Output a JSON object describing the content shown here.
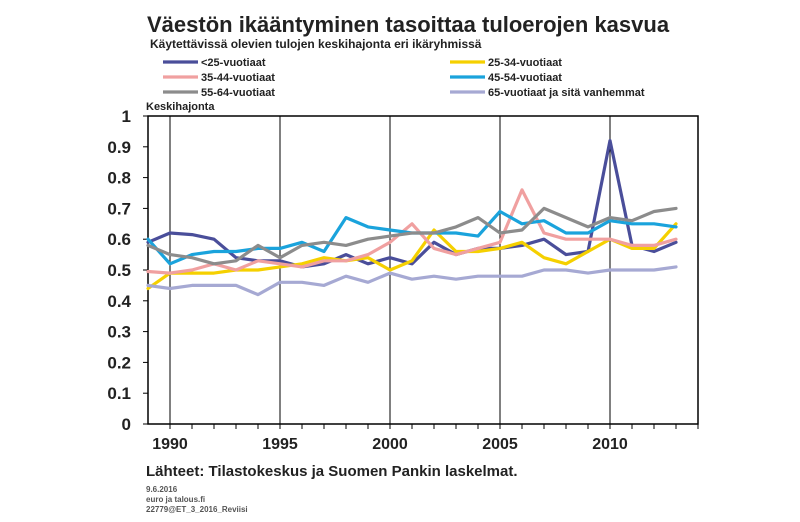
{
  "chart_data": {
    "type": "line",
    "title": "Väestön ikääntyminen tasoittaa tuloerojen kasvua",
    "subtitle": "Käytettävissä olevien tulojen keskihajonta eri ikäryhmissä",
    "ylabel": "Keskihajonta",
    "xlabel": "",
    "ylim": [
      0,
      1
    ],
    "yticks": [
      "1",
      "0.9",
      "0.8",
      "0.7",
      "0.6",
      "0.5",
      "0.4",
      "0.3",
      "0.2",
      "0.1",
      "0"
    ],
    "xlim": [
      1989,
      2014
    ],
    "xticks": [
      "1990",
      "1995",
      "2000",
      "2005",
      "2010"
    ],
    "grid": "vertical",
    "legend": "top",
    "x": [
      1989,
      1990,
      1991,
      1992,
      1993,
      1994,
      1995,
      1996,
      1997,
      1998,
      1999,
      2000,
      2001,
      2002,
      2003,
      2004,
      2005,
      2006,
      2007,
      2008,
      2009,
      2010,
      2011,
      2012,
      2013
    ],
    "series": [
      {
        "name": "<25-vuotiaat",
        "color": "#4a4e9a",
        "values": [
          0.59,
          0.62,
          0.615,
          0.6,
          0.54,
          0.53,
          0.53,
          0.51,
          0.52,
          0.55,
          0.52,
          0.54,
          0.52,
          0.59,
          0.55,
          0.57,
          0.57,
          0.58,
          0.6,
          0.55,
          0.56,
          0.92,
          0.58,
          0.56,
          0.59
        ]
      },
      {
        "name": "25-34-vuotiaat",
        "color": "#f5d000",
        "values": [
          0.44,
          0.49,
          0.49,
          0.49,
          0.5,
          0.5,
          0.51,
          0.52,
          0.54,
          0.53,
          0.54,
          0.5,
          0.53,
          0.63,
          0.56,
          0.56,
          0.57,
          0.59,
          0.54,
          0.52,
          0.56,
          0.6,
          0.57,
          0.57,
          0.65
        ]
      },
      {
        "name": "35-44-vuotiaat",
        "color": "#f0a0a0",
        "values": [
          0.495,
          0.49,
          0.5,
          0.52,
          0.5,
          0.53,
          0.52,
          0.51,
          0.53,
          0.53,
          0.55,
          0.59,
          0.65,
          0.57,
          0.55,
          0.57,
          0.59,
          0.76,
          0.62,
          0.6,
          0.6,
          0.6,
          0.58,
          0.58,
          0.6
        ]
      },
      {
        "name": "45-54-vuotiaat",
        "color": "#1aa3dc",
        "values": [
          0.6,
          0.52,
          0.55,
          0.56,
          0.56,
          0.57,
          0.57,
          0.59,
          0.56,
          0.67,
          0.64,
          0.63,
          0.62,
          0.62,
          0.62,
          0.61,
          0.69,
          0.65,
          0.66,
          0.62,
          0.62,
          0.66,
          0.65,
          0.65,
          0.64
        ]
      },
      {
        "name": "55-64-vuotiaat",
        "color": "#8c8c8c",
        "values": [
          0.58,
          0.55,
          0.54,
          0.52,
          0.53,
          0.58,
          0.54,
          0.58,
          0.59,
          0.58,
          0.6,
          0.61,
          0.62,
          0.62,
          0.64,
          0.67,
          0.62,
          0.63,
          0.7,
          0.67,
          0.64,
          0.67,
          0.66,
          0.69,
          0.7
        ]
      },
      {
        "name": "65-vuotiaat ja sitä vanhemmat",
        "color": "#a6a9d3",
        "values": [
          0.45,
          0.44,
          0.45,
          0.45,
          0.45,
          0.42,
          0.46,
          0.46,
          0.45,
          0.48,
          0.46,
          0.49,
          0.47,
          0.48,
          0.47,
          0.48,
          0.48,
          0.48,
          0.5,
          0.5,
          0.49,
          0.5,
          0.5,
          0.5,
          0.51
        ]
      }
    ],
    "source": "Lähteet: Tilastokeskus ja Suomen Pankin laskelmat.",
    "footer": [
      "9.6.2016",
      "euro ja talous.fi",
      "22779@ET_3_2016_Reviisi"
    ]
  }
}
